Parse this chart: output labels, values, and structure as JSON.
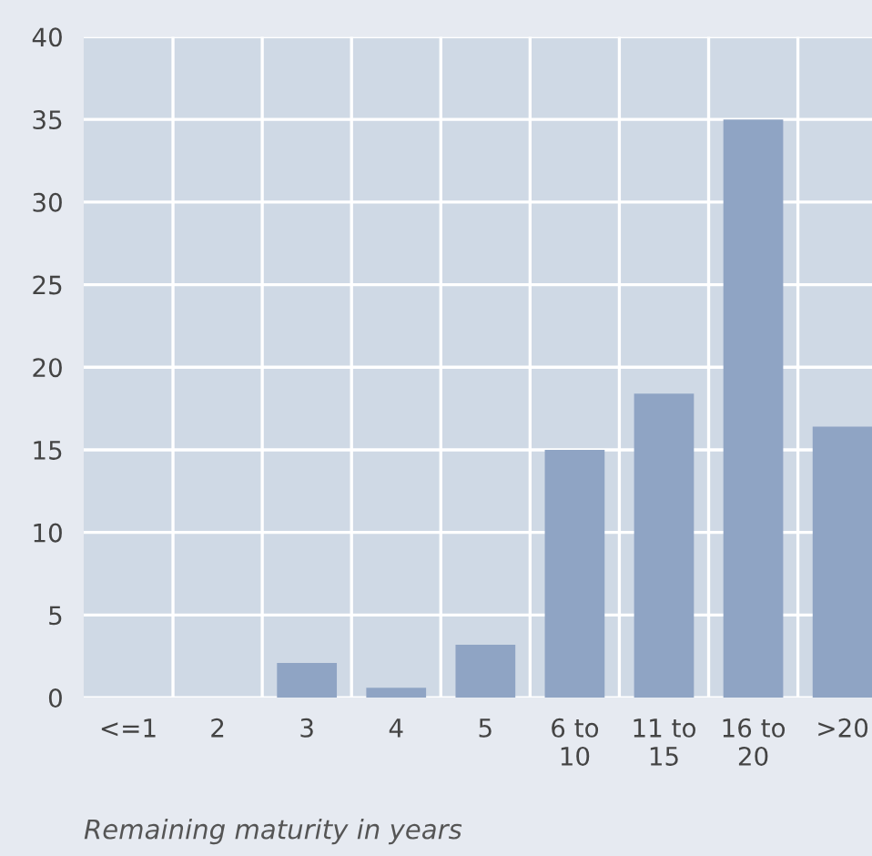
{
  "chart_data": {
    "type": "bar",
    "categories": [
      "<=1",
      "2",
      "3",
      "4",
      "5",
      "6 to\n10",
      "11 to\n15",
      "16 to\n20",
      ">20"
    ],
    "values": [
      0,
      0,
      2.1,
      0.6,
      3.2,
      15,
      18.4,
      35,
      16.4
    ],
    "color": "#8fa4c4",
    "ylim": [
      0,
      40
    ],
    "yticks": [
      0,
      5,
      10,
      15,
      20,
      25,
      30,
      35,
      40
    ],
    "xlabel": "Remaining maturity in years",
    "grid": true,
    "legend": false
  }
}
